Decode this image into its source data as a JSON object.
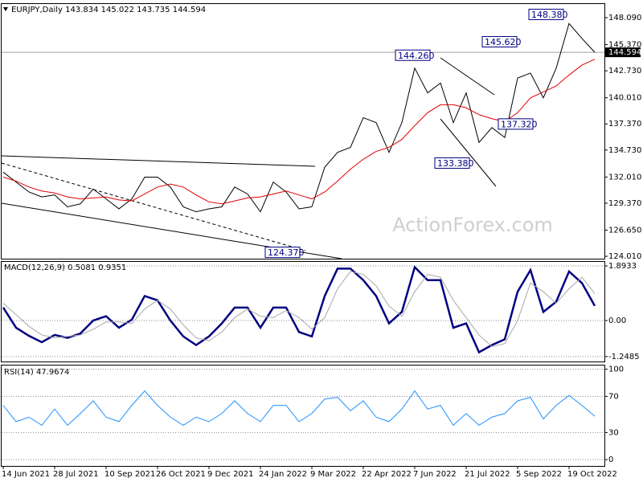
{
  "chart_data": [
    {
      "type": "line",
      "title": "EURJPY,Daily  143.834 145.022 143.735 144.594",
      "watermark": "ActionForex.com",
      "ylim": [
        123.77,
        149.55
      ],
      "yticks": [
        {
          "value": 148.09,
          "label": "148.090"
        },
        {
          "value": 145.37,
          "label": "145.370"
        },
        {
          "value": 142.73,
          "label": "142.730"
        },
        {
          "value": 140.01,
          "label": "140.010"
        },
        {
          "value": 137.37,
          "label": "137.370"
        },
        {
          "value": 134.73,
          "label": "134.730"
        },
        {
          "value": 132.01,
          "label": "132.010"
        },
        {
          "value": 129.37,
          "label": "129.370"
        },
        {
          "value": 126.65,
          "label": "126.650"
        },
        {
          "value": 124.01,
          "label": "124.010"
        }
      ],
      "grid": false,
      "last_price": {
        "value": 144.594,
        "label": "144.594"
      },
      "annotations": [
        {
          "value": 148.38,
          "label": "148.380"
        },
        {
          "value": 145.62,
          "label": "145.620"
        },
        {
          "value": 144.26,
          "label": "144.260"
        },
        {
          "value": 137.32,
          "label": "137.320"
        },
        {
          "value": 133.38,
          "label": "133.380"
        },
        {
          "value": 124.37,
          "label": "124.370"
        }
      ],
      "series": [
        {
          "color": "#000000",
          "values": [
            132.5,
            131.5,
            130.5,
            130.0,
            130.2,
            129.0,
            129.3,
            130.8,
            129.8,
            128.8,
            129.8,
            132.0,
            132.0,
            131.0,
            129.0,
            128.5,
            128.8,
            129.0,
            131.0,
            130.3,
            128.5,
            131.5,
            130.5,
            128.8,
            129.0,
            133.0,
            134.5,
            135.0,
            138.0,
            137.5,
            134.5,
            137.5,
            143.0,
            140.5,
            141.5,
            137.5,
            140.5,
            135.5,
            137.0,
            136.0,
            142.0,
            142.5,
            140.0,
            143.0,
            147.5,
            146.0,
            144.594
          ]
        },
        {
          "color": "#e00000",
          "values": [
            132.0,
            131.6,
            131.0,
            130.6,
            130.4,
            130.0,
            129.8,
            129.9,
            130.0,
            129.7,
            129.6,
            130.3,
            131.0,
            131.3,
            131.0,
            130.2,
            129.5,
            129.3,
            129.6,
            129.9,
            130.0,
            130.3,
            130.6,
            130.2,
            129.8,
            130.5,
            131.6,
            132.8,
            133.8,
            134.6,
            135.0,
            135.8,
            137.2,
            138.5,
            139.3,
            139.3,
            139.0,
            138.3,
            137.9,
            137.6,
            138.5,
            140.0,
            140.6,
            141.2,
            142.3,
            143.3,
            143.9
          ]
        }
      ]
    },
    {
      "type": "line",
      "title": "MACD(12,26,9) 0.5081 0.9351",
      "ylim": [
        -1.42,
        2.06
      ],
      "yticks": [
        1.8933,
        {
          "value": 0,
          "label": "0.00"
        },
        -1.2485
      ],
      "grid": true,
      "series": [
        {
          "color": "#000080",
          "values": [
            0.45,
            -0.25,
            -0.53,
            -0.75,
            -0.5,
            -0.6,
            -0.45,
            0.0,
            0.15,
            -0.25,
            0.03,
            0.85,
            0.7,
            0.0,
            -0.55,
            -0.85,
            -0.55,
            -0.1,
            0.45,
            0.45,
            -0.25,
            0.45,
            0.45,
            -0.4,
            -0.55,
            0.85,
            1.8,
            1.8,
            1.4,
            0.85,
            -0.1,
            0.3,
            1.85,
            1.4,
            1.4,
            -0.25,
            -0.1,
            -1.1,
            -0.85,
            -0.65,
            1.0,
            1.75,
            0.3,
            0.65,
            1.7,
            1.3,
            0.5081
          ]
        },
        {
          "color": "#a8a8a8",
          "values": [
            0.6,
            0.2,
            -0.2,
            -0.5,
            -0.6,
            -0.55,
            -0.5,
            -0.3,
            -0.05,
            -0.05,
            -0.1,
            0.4,
            0.7,
            0.4,
            -0.15,
            -0.6,
            -0.7,
            -0.4,
            0.1,
            0.4,
            0.15,
            0.1,
            0.35,
            0.1,
            -0.3,
            0.1,
            1.1,
            1.7,
            1.6,
            1.2,
            0.5,
            0.15,
            1.0,
            1.6,
            1.5,
            0.7,
            0.1,
            -0.5,
            -0.9,
            -0.8,
            0.0,
            1.3,
            1.0,
            0.6,
            1.1,
            1.5,
            0.9351
          ]
        }
      ]
    },
    {
      "type": "line",
      "title": "RSI(14) 47.9674",
      "ylim": [
        -7,
        105
      ],
      "yticks": [
        100,
        70,
        30,
        0
      ],
      "grid": true,
      "categories": [
        "14 Jun 2021",
        null,
        null,
        null,
        "28 Jul 2021",
        null,
        null,
        null,
        "10 Sep 2021",
        null,
        null,
        null,
        "26 Oct 2021",
        null,
        null,
        null,
        "9 Dec 2021",
        null,
        null,
        null,
        "24 Jan 2022",
        null,
        null,
        null,
        "9 Mar 2022",
        null,
        null,
        null,
        "22 Apr 2022",
        null,
        null,
        null,
        "7 Jun 2022",
        null,
        null,
        null,
        "21 Jul 2022",
        null,
        null,
        null,
        "5 Sep 2022",
        null,
        null,
        null,
        "19 Oct 2022",
        null,
        null
      ],
      "series": [
        {
          "color": "#1e90ff",
          "values": [
            60,
            42,
            47,
            38,
            56,
            38,
            51,
            65,
            47,
            42,
            60,
            76,
            60,
            47,
            38,
            47,
            42,
            51,
            65,
            51,
            42,
            60,
            60,
            42,
            51,
            67,
            69,
            54,
            65,
            47,
            42,
            56,
            76,
            56,
            60,
            38,
            51,
            38,
            47,
            51,
            65,
            69,
            45,
            60,
            71,
            60,
            47.9674
          ]
        }
      ]
    }
  ]
}
